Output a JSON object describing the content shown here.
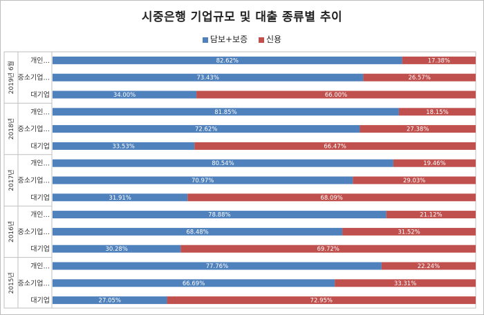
{
  "chart_data": {
    "type": "bar",
    "orientation": "horizontal",
    "stacked": "percent",
    "title": "시중은행 기업규모 및 대출 종류별 추이",
    "legend": {
      "position": "top"
    },
    "series": [
      {
        "name": "담보+보증",
        "color": "#4F81BD"
      },
      {
        "name": "신용",
        "color": "#C0504D"
      }
    ],
    "groups": [
      {
        "label": "2019년 6월",
        "rows": [
          {
            "category": "개인...",
            "values": [
              82.62,
              17.38
            ],
            "labels": [
              "82.62%",
              "17.38%"
            ]
          },
          {
            "category": "중소기업...",
            "values": [
              73.43,
              26.57
            ],
            "labels": [
              "73.43%",
              "26.57%"
            ]
          },
          {
            "category": "대기업",
            "values": [
              34.0,
              66.0
            ],
            "labels": [
              "34.00%",
              "66.00%"
            ]
          }
        ]
      },
      {
        "label": "2018년",
        "rows": [
          {
            "category": "개인...",
            "values": [
              81.85,
              18.15
            ],
            "labels": [
              "81.85%",
              "18.15%"
            ]
          },
          {
            "category": "중소기업...",
            "values": [
              72.62,
              27.38
            ],
            "labels": [
              "72.62%",
              "27.38%"
            ]
          },
          {
            "category": "대기업",
            "values": [
              33.53,
              66.47
            ],
            "labels": [
              "33.53%",
              "66.47%"
            ]
          }
        ]
      },
      {
        "label": "2017년",
        "rows": [
          {
            "category": "개인...",
            "values": [
              80.54,
              19.46
            ],
            "labels": [
              "80.54%",
              "19.46%"
            ]
          },
          {
            "category": "중소기업...",
            "values": [
              70.97,
              29.03
            ],
            "labels": [
              "70.97%",
              "29.03%"
            ]
          },
          {
            "category": "대기업",
            "values": [
              31.91,
              68.09
            ],
            "labels": [
              "31.91%",
              "68.09%"
            ]
          }
        ]
      },
      {
        "label": "2016년",
        "rows": [
          {
            "category": "개인...",
            "values": [
              78.88,
              21.12
            ],
            "labels": [
              "78.88%",
              "21.12%"
            ]
          },
          {
            "category": "중소기업...",
            "values": [
              68.48,
              31.52
            ],
            "labels": [
              "68.48%",
              "31.52%"
            ]
          },
          {
            "category": "대기업",
            "values": [
              30.28,
              69.72
            ],
            "labels": [
              "30.28%",
              "69.72%"
            ]
          }
        ]
      },
      {
        "label": "2015년",
        "rows": [
          {
            "category": "개인...",
            "values": [
              77.76,
              22.24
            ],
            "labels": [
              "77.76%",
              "22.24%"
            ]
          },
          {
            "category": "중소기업...",
            "values": [
              66.69,
              33.31
            ],
            "labels": [
              "66.69%",
              "33.31%"
            ]
          },
          {
            "category": "대기업",
            "values": [
              27.05,
              72.95
            ],
            "labels": [
              "27.05%",
              "72.95%"
            ]
          }
        ]
      }
    ]
  }
}
